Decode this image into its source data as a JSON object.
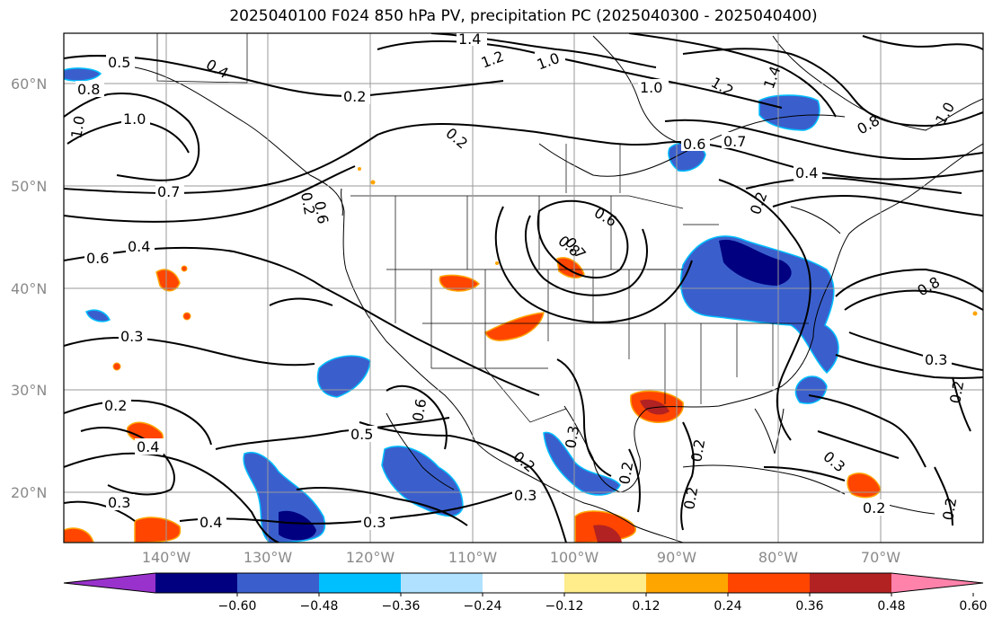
{
  "title": "2025040100 F024 850 hPa PV, precipitation PC (2025040300 - 2025040400)",
  "lat_labels": [
    "60°N",
    "50°N",
    "40°N",
    "30°N",
    "20°N"
  ],
  "lon_labels": [
    "140°W",
    "130°W",
    "120°W",
    "110°W",
    "100°W",
    "90°W",
    "80°W",
    "70°W"
  ],
  "colorbar": {
    "ticks": [
      "−0.60",
      "−0.48",
      "−0.36",
      "−0.24",
      "−0.12",
      "0.12",
      "0.24",
      "0.36",
      "0.48",
      "0.60"
    ],
    "colors": [
      "#9932cc",
      "#000080",
      "#3a5fcd",
      "#00bfff",
      "#b0e2ff",
      "#ffffff",
      "#ffec8b",
      "#ffa500",
      "#ff4500",
      "#b22222",
      "#ff82ab"
    ]
  },
  "contour_labels": [
    "0.5",
    "0.8",
    "1.0",
    "1.0",
    "0.7",
    "0.4",
    "0.6",
    "0.3",
    "0.2",
    "0.4",
    "0.3",
    "0.4",
    "0.2",
    "0.5",
    "0.6",
    "0.3",
    "0.2",
    "0.3",
    "0.4",
    "0.2",
    "1.4",
    "1.2",
    "1.0",
    "1.0",
    "1.2",
    "1.4",
    "0.6",
    "0.7",
    "0.4",
    "0.8",
    "1.0",
    "0.2",
    "0.6",
    "0.8",
    "0.2",
    "0.3",
    "0.8",
    "0.3",
    "0.2",
    "0.2",
    "0.2",
    "0.2",
    "0.2",
    "0.3",
    "0.2",
    "0.6",
    "0.7",
    "0.8"
  ]
}
